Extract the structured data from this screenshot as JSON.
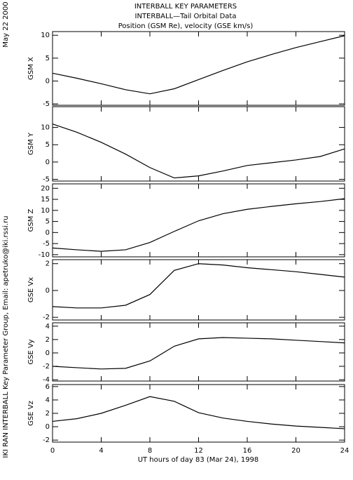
{
  "header": {
    "title_lines": [
      "INTERBALL KEY PARAMETERS",
      "INTERBALL—Tail Orbital Data",
      "Position (GSM Re), velocity (GSE km/s)"
    ],
    "date": "May 22 2000",
    "credit": "IKI RAN INTERBALL Key Parameter Group, Email: apetruko@iki.rssi.ru"
  },
  "x_label": "UT hours of day  83 (Mar 24), 1998",
  "chart_data": [
    {
      "type": "line",
      "y_label": "GSM X",
      "x": [
        0,
        2,
        4,
        6,
        8,
        10,
        12,
        14,
        16,
        18,
        20,
        22,
        24
      ],
      "values": [
        1.7,
        0.6,
        -0.6,
        -1.9,
        -2.8,
        -1.7,
        0.3,
        2.3,
        4.2,
        5.8,
        7.3,
        8.6,
        9.9
      ],
      "xlim": [
        0,
        24
      ],
      "xticks": [
        0,
        4,
        8,
        12,
        16,
        20,
        24
      ],
      "ylim": [
        -5.3,
        10.8
      ],
      "yticks": [
        -5,
        0,
        5,
        10
      ]
    },
    {
      "type": "line",
      "y_label": "GSM Y",
      "x": [
        0,
        2,
        4,
        6,
        8,
        10,
        12,
        14,
        16,
        18,
        20,
        22,
        24
      ],
      "values": [
        11,
        8.6,
        5.7,
        2.3,
        -1.6,
        -4.6,
        -4.0,
        -2.6,
        -1.0,
        -0.2,
        0.6,
        1.6,
        3.8
      ],
      "xlim": [
        0,
        24
      ],
      "xticks": [
        0,
        4,
        8,
        12,
        16,
        20,
        24
      ],
      "ylim": [
        -5.5,
        16
      ],
      "yticks": [
        -5,
        0,
        5,
        10
      ]
    },
    {
      "type": "line",
      "y_label": "GSM Z",
      "x": [
        0,
        2,
        4,
        6,
        8,
        10,
        12,
        14,
        16,
        18,
        20,
        22,
        24
      ],
      "values": [
        -7,
        -7.8,
        -8.5,
        -7.8,
        -4.5,
        0.5,
        5.3,
        8.5,
        10.5,
        11.8,
        13,
        14,
        15.3
      ],
      "xlim": [
        0,
        24
      ],
      "xticks": [
        0,
        4,
        8,
        12,
        16,
        20,
        24
      ],
      "ylim": [
        -11,
        22
      ],
      "yticks": [
        -10,
        -5,
        0,
        5,
        10,
        15,
        20
      ]
    },
    {
      "type": "line",
      "y_label": "GSE Vx",
      "x": [
        0,
        2,
        4,
        6,
        8,
        10,
        12,
        14,
        16,
        18,
        20,
        22,
        24
      ],
      "values": [
        -1.2,
        -1.3,
        -1.3,
        -1.1,
        -0.3,
        1.5,
        2.0,
        1.9,
        1.7,
        1.55,
        1.4,
        1.2,
        1.0
      ],
      "xlim": [
        0,
        24
      ],
      "xticks": [
        0,
        4,
        8,
        12,
        16,
        20,
        24
      ],
      "ylim": [
        -2.2,
        2.3
      ],
      "yticks": [
        -2,
        0,
        2
      ]
    },
    {
      "type": "line",
      "y_label": "GSE Vy",
      "x": [
        0,
        2,
        4,
        6,
        8,
        10,
        12,
        14,
        16,
        18,
        20,
        22,
        24
      ],
      "values": [
        -2.0,
        -2.2,
        -2.4,
        -2.3,
        -1.2,
        1.0,
        2.1,
        2.3,
        2.2,
        2.1,
        1.9,
        1.7,
        1.5
      ],
      "xlim": [
        0,
        24
      ],
      "xticks": [
        0,
        4,
        8,
        12,
        16,
        20,
        24
      ],
      "ylim": [
        -4.2,
        4.5
      ],
      "yticks": [
        -4,
        -2,
        0,
        2,
        4
      ]
    },
    {
      "type": "line",
      "y_label": "GSE Vz",
      "x": [
        0,
        2,
        4,
        6,
        8,
        10,
        12,
        14,
        16,
        18,
        20,
        22,
        24
      ],
      "values": [
        0.8,
        1.2,
        2.0,
        3.2,
        4.5,
        3.8,
        2.1,
        1.3,
        0.8,
        0.4,
        0.1,
        -0.1,
        -0.3
      ],
      "xlim": [
        0,
        24
      ],
      "xticks": [
        0,
        4,
        8,
        12,
        16,
        20,
        24
      ],
      "ylim": [
        -2.3,
        6.3
      ],
      "yticks": [
        -2,
        0,
        2,
        4,
        6
      ]
    }
  ]
}
